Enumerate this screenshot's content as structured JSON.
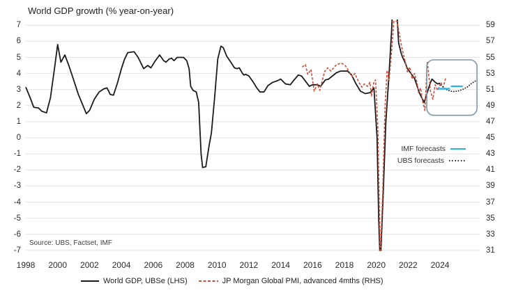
{
  "title": "World GDP growth (% year-on-year)",
  "source": "Source: UBS, Factset, IMF",
  "colors": {
    "gdp_line": "#1a1a1a",
    "pmi_line": "#c8503c",
    "imf_line": "#29b3e8",
    "ubs_forecast_line": "#1a1a1a",
    "highlight_box": "#7e96ab",
    "grid": "#e2e2e2",
    "axis_text": "#2b2b2b"
  },
  "legend_inner": [
    {
      "label": "IMF forecasts",
      "style": "solid-cyan"
    },
    {
      "label": "UBS forecasts",
      "style": "dotted-black"
    }
  ],
  "legend_bottom": [
    {
      "label": "World GDP, UBSe (LHS)",
      "style": "solid-black"
    },
    {
      "label": "JP Morgan Global PMI, advanced 4mths (RHS)",
      "style": "dashed-red"
    }
  ],
  "chart_data": {
    "type": "line",
    "title": "World GDP growth (% year-on-year)",
    "grid": true,
    "x_axis": {
      "min": 1998,
      "max": 2026.49,
      "ticks": [
        1998,
        2000,
        2002,
        2004,
        2006,
        2008,
        2010,
        2012,
        2014,
        2016,
        2018,
        2020,
        2022,
        2024
      ]
    },
    "lhs_axis": {
      "min": -7,
      "max": 7,
      "ticks": [
        7,
        6,
        5,
        4,
        3,
        2,
        1,
        0,
        -1,
        -2,
        -3,
        -4,
        -5,
        -6,
        -7
      ]
    },
    "rhs_axis": {
      "min": 31,
      "max": 59,
      "ticks": [
        59,
        57,
        55,
        53,
        51,
        49,
        47,
        45,
        43,
        41,
        39,
        37,
        35,
        33,
        31
      ]
    },
    "highlight_box": {
      "x_range": [
        2023.17,
        2026.32
      ],
      "lhs_range": [
        1.4,
        4.85
      ],
      "corner_radius": 10
    },
    "series": [
      {
        "name": "World GDP, UBSe (LHS)",
        "data_name": "world-gdp-line",
        "axis": "lhs",
        "style": "solid",
        "color": "#1a1a1a",
        "width": 1.8,
        "points": [
          [
            1998.0,
            3.15
          ],
          [
            1998.25,
            2.55
          ],
          [
            1998.5,
            1.9
          ],
          [
            1998.8,
            1.85
          ],
          [
            1999.0,
            1.65
          ],
          [
            1999.3,
            1.55
          ],
          [
            1999.55,
            2.5
          ],
          [
            1999.8,
            4.3
          ],
          [
            2000.0,
            5.8
          ],
          [
            2000.2,
            4.7
          ],
          [
            2000.45,
            5.15
          ],
          [
            2000.7,
            4.5
          ],
          [
            2001.0,
            3.6
          ],
          [
            2001.3,
            2.7
          ],
          [
            2001.55,
            2.1
          ],
          [
            2001.8,
            1.5
          ],
          [
            2002.0,
            1.7
          ],
          [
            2002.3,
            2.4
          ],
          [
            2002.6,
            2.85
          ],
          [
            2002.9,
            3.05
          ],
          [
            2003.1,
            3.1
          ],
          [
            2003.3,
            2.7
          ],
          [
            2003.5,
            2.65
          ],
          [
            2003.75,
            3.4
          ],
          [
            2004.0,
            4.3
          ],
          [
            2004.2,
            4.9
          ],
          [
            2004.4,
            5.3
          ],
          [
            2004.8,
            5.35
          ],
          [
            2005.05,
            5.0
          ],
          [
            2005.2,
            4.7
          ],
          [
            2005.4,
            4.3
          ],
          [
            2005.65,
            4.5
          ],
          [
            2005.85,
            4.35
          ],
          [
            2006.1,
            4.75
          ],
          [
            2006.4,
            5.15
          ],
          [
            2006.65,
            4.8
          ],
          [
            2006.8,
            4.7
          ],
          [
            2007.0,
            4.9
          ],
          [
            2007.15,
            4.95
          ],
          [
            2007.3,
            4.8
          ],
          [
            2007.5,
            5.0
          ],
          [
            2007.9,
            5.0
          ],
          [
            2008.1,
            4.8
          ],
          [
            2008.25,
            4.3
          ],
          [
            2008.35,
            3.2
          ],
          [
            2008.5,
            2.95
          ],
          [
            2008.7,
            2.85
          ],
          [
            2008.85,
            2.2
          ],
          [
            2009.0,
            -1.0
          ],
          [
            2009.1,
            -1.85
          ],
          [
            2009.3,
            -1.8
          ],
          [
            2009.5,
            -0.5
          ],
          [
            2009.65,
            0.3
          ],
          [
            2009.85,
            2.5
          ],
          [
            2010.05,
            4.9
          ],
          [
            2010.25,
            5.7
          ],
          [
            2010.4,
            5.6
          ],
          [
            2010.6,
            5.1
          ],
          [
            2010.9,
            4.65
          ],
          [
            2011.1,
            4.35
          ],
          [
            2011.25,
            4.3
          ],
          [
            2011.4,
            4.35
          ],
          [
            2011.6,
            4.0
          ],
          [
            2011.7,
            3.9
          ],
          [
            2011.8,
            3.95
          ],
          [
            2012.0,
            3.85
          ],
          [
            2012.25,
            3.5
          ],
          [
            2012.5,
            3.1
          ],
          [
            2012.7,
            2.85
          ],
          [
            2012.95,
            2.85
          ],
          [
            2013.2,
            3.25
          ],
          [
            2013.5,
            3.45
          ],
          [
            2013.8,
            3.55
          ],
          [
            2014.0,
            3.65
          ],
          [
            2014.3,
            3.35
          ],
          [
            2014.6,
            3.3
          ],
          [
            2014.8,
            3.55
          ],
          [
            2015.1,
            3.9
          ],
          [
            2015.3,
            3.85
          ],
          [
            2015.8,
            3.2
          ],
          [
            2016.0,
            3.3
          ],
          [
            2016.3,
            3.3
          ],
          [
            2016.5,
            3.2
          ],
          [
            2016.8,
            3.6
          ],
          [
            2017.0,
            3.65
          ],
          [
            2017.5,
            4.05
          ],
          [
            2017.75,
            4.15
          ],
          [
            2018.2,
            4.15
          ],
          [
            2018.45,
            3.9
          ],
          [
            2018.7,
            3.4
          ],
          [
            2019.0,
            2.9
          ],
          [
            2019.3,
            2.75
          ],
          [
            2019.6,
            2.8
          ],
          [
            2019.85,
            3.1
          ],
          [
            2020.05,
            0.0
          ],
          [
            2020.15,
            -5.0
          ],
          [
            2020.25,
            -8.0
          ],
          [
            2020.45,
            -3.0
          ],
          [
            2020.6,
            1.0
          ],
          [
            2020.8,
            4.0
          ],
          [
            2020.95,
            6.5
          ],
          [
            2021.05,
            8.5
          ],
          [
            2021.25,
            8.5
          ],
          [
            2021.4,
            5.9
          ],
          [
            2021.55,
            5.3
          ],
          [
            2021.65,
            5.0
          ],
          [
            2021.8,
            4.7
          ],
          [
            2021.95,
            4.3
          ],
          [
            2022.1,
            4.1
          ],
          [
            2022.4,
            3.7
          ],
          [
            2022.7,
            2.8
          ],
          [
            2022.85,
            2.5
          ],
          [
            2023.0,
            2.2
          ],
          [
            2023.4,
            3.45
          ],
          [
            2023.5,
            3.65
          ],
          [
            2023.7,
            3.45
          ],
          [
            2023.85,
            3.35
          ],
          [
            2024.0,
            3.4
          ]
        ]
      },
      {
        "name": "JP Morgan Global PMI, advanced 4mths (RHS)",
        "data_name": "pmi-line",
        "axis": "rhs",
        "style": "dashed",
        "color": "#c8503c",
        "width": 1.6,
        "points": [
          [
            2015.35,
            53.8
          ],
          [
            2015.55,
            54.1
          ],
          [
            2015.7,
            52.9
          ],
          [
            2015.9,
            53.5
          ],
          [
            2016.1,
            50.8
          ],
          [
            2016.3,
            51.7
          ],
          [
            2016.45,
            50.9
          ],
          [
            2016.75,
            53.2
          ],
          [
            2016.95,
            53.7
          ],
          [
            2017.15,
            53.3
          ],
          [
            2017.5,
            54.1
          ],
          [
            2017.8,
            54.3
          ],
          [
            2018.05,
            54.0
          ],
          [
            2018.3,
            53.2
          ],
          [
            2018.5,
            52.6
          ],
          [
            2018.65,
            53.0
          ],
          [
            2018.9,
            51.9
          ],
          [
            2019.1,
            51.3
          ],
          [
            2019.25,
            51.7
          ],
          [
            2019.45,
            51.4
          ],
          [
            2019.6,
            51.9
          ],
          [
            2019.7,
            50.2
          ],
          [
            2019.85,
            52.0
          ],
          [
            2019.95,
            52.2
          ],
          [
            2020.1,
            46.0
          ],
          [
            2020.25,
            30.0
          ],
          [
            2020.4,
            38.0
          ],
          [
            2020.55,
            49.0
          ],
          [
            2020.68,
            53.4
          ],
          [
            2020.8,
            52.1
          ],
          [
            2020.95,
            55.5
          ],
          [
            2021.1,
            59.5
          ],
          [
            2021.3,
            59.5
          ],
          [
            2021.45,
            57.9
          ],
          [
            2021.6,
            56.2
          ],
          [
            2021.7,
            55.4
          ],
          [
            2021.85,
            54.2
          ],
          [
            2021.95,
            53.2
          ],
          [
            2022.1,
            53.8
          ],
          [
            2022.25,
            52.3
          ],
          [
            2022.4,
            53.0
          ],
          [
            2022.55,
            51.9
          ],
          [
            2022.65,
            50.6
          ],
          [
            2022.78,
            51.2
          ],
          [
            2022.9,
            49.6
          ],
          [
            2023.05,
            48.4
          ],
          [
            2023.2,
            54.5
          ],
          [
            2023.4,
            50.8
          ],
          [
            2023.55,
            49.8
          ],
          [
            2023.7,
            51.6
          ],
          [
            2023.85,
            50.9
          ],
          [
            2024.05,
            51.9
          ],
          [
            2024.2,
            51.3
          ],
          [
            2024.35,
            52.4
          ]
        ]
      },
      {
        "name": "UBS forecasts",
        "data_name": "ubs-forecast-line",
        "axis": "lhs",
        "style": "dotted",
        "color": "#1a1a1a",
        "width": 1.8,
        "points": [
          [
            2023.95,
            3.38
          ],
          [
            2024.25,
            3.1
          ],
          [
            2024.5,
            2.95
          ],
          [
            2024.8,
            2.87
          ],
          [
            2025.1,
            2.9
          ],
          [
            2025.4,
            3.0
          ],
          [
            2025.7,
            3.15
          ],
          [
            2026.0,
            3.4
          ],
          [
            2026.25,
            3.55
          ]
        ]
      },
      {
        "name": "IMF forecasts (2024)",
        "data_name": "imf-forecast-segment-1",
        "axis": "lhs",
        "style": "solid",
        "color": "#29b3e8",
        "width": 2.4,
        "points": [
          [
            2023.85,
            3.05
          ],
          [
            2024.62,
            3.05
          ]
        ]
      },
      {
        "name": "IMF forecasts (2025)",
        "data_name": "imf-forecast-segment-2",
        "axis": "lhs",
        "style": "solid",
        "color": "#29b3e8",
        "width": 2.4,
        "points": [
          [
            2024.68,
            3.2
          ],
          [
            2025.42,
            3.2
          ]
        ]
      }
    ]
  }
}
